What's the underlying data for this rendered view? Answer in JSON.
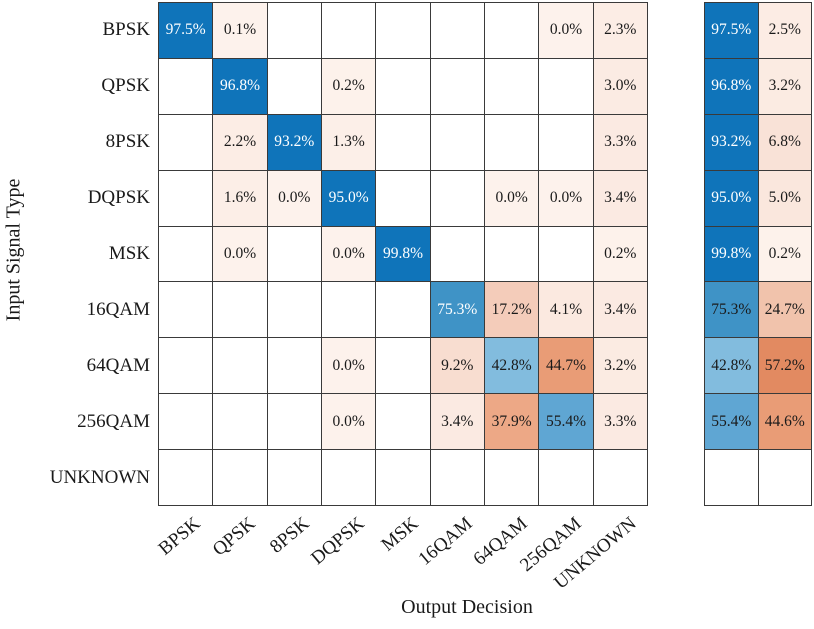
{
  "chart_data": {
    "type": "heatmap",
    "title": "",
    "xlabel": "Output Decision",
    "ylabel": "Input Signal Type",
    "row_labels": [
      "BPSK",
      "QPSK",
      "8PSK",
      "DQPSK",
      "MSK",
      "16QAM",
      "64QAM",
      "256QAM",
      "UNKNOWN"
    ],
    "col_labels": [
      "BPSK",
      "QPSK",
      "8PSK",
      "DQPSK",
      "MSK",
      "16QAM",
      "64QAM",
      "256QAM",
      "UNKNOWN"
    ],
    "value_suffix": "%",
    "matrix": [
      [
        97.5,
        0.1,
        null,
        null,
        null,
        null,
        null,
        0.0,
        2.3
      ],
      [
        null,
        96.8,
        null,
        0.2,
        null,
        null,
        null,
        null,
        3.0
      ],
      [
        null,
        2.2,
        93.2,
        1.3,
        null,
        null,
        null,
        null,
        3.3
      ],
      [
        null,
        1.6,
        0.0,
        95.0,
        null,
        null,
        0.0,
        0.0,
        3.4
      ],
      [
        null,
        0.0,
        null,
        0.0,
        99.8,
        null,
        null,
        null,
        0.2
      ],
      [
        null,
        null,
        null,
        null,
        null,
        75.3,
        17.2,
        4.1,
        3.4
      ],
      [
        null,
        null,
        null,
        0.0,
        null,
        9.2,
        42.8,
        44.7,
        3.2
      ],
      [
        null,
        null,
        null,
        0.0,
        null,
        3.4,
        37.9,
        55.4,
        3.3
      ],
      [
        null,
        null,
        null,
        null,
        null,
        null,
        null,
        null,
        null
      ]
    ],
    "summary": [
      [
        97.5,
        2.5
      ],
      [
        96.8,
        3.2
      ],
      [
        93.2,
        6.8
      ],
      [
        95.0,
        5.0
      ],
      [
        99.8,
        0.2
      ],
      [
        75.3,
        24.7
      ],
      [
        42.8,
        57.2
      ],
      [
        55.4,
        44.6
      ],
      [
        null,
        null
      ]
    ]
  },
  "colors": {
    "background": "#ffffff",
    "grid_line": "#3a3a3a",
    "text_dark": "#1a1a1a",
    "text_light": "#ffffff",
    "blue_anchors": [
      [
        0,
        "#ffffff"
      ],
      [
        42.8,
        "#82bcde"
      ],
      [
        55.4,
        "#5fa6d3"
      ],
      [
        75.3,
        "#3f93c6"
      ],
      [
        93,
        "#0f74ba"
      ],
      [
        100,
        "#0f74ba"
      ]
    ],
    "red_anchors": [
      [
        0,
        "#fdf2ec"
      ],
      [
        9.2,
        "#f8ddd0"
      ],
      [
        17.2,
        "#f4ccba"
      ],
      [
        24.7,
        "#f1c3ac"
      ],
      [
        37.9,
        "#eda886"
      ],
      [
        44.7,
        "#e99c76"
      ],
      [
        57.2,
        "#e28a61"
      ],
      [
        100,
        "#d96a3e"
      ]
    ]
  }
}
